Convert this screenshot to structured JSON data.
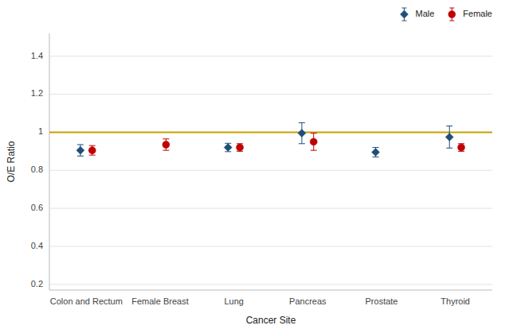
{
  "chart_data": {
    "type": "errorbar",
    "categories": [
      "Colon and Rectum",
      "Female Breast",
      "Lung",
      "Pancreas",
      "Prostate",
      "Thyroid"
    ],
    "series": [
      {
        "name": "Male",
        "color": "#1f4e79",
        "marker": "diamond",
        "values": [
          0.905,
          null,
          0.92,
          0.995,
          0.895,
          0.975
        ],
        "error_lower": [
          0.03,
          null,
          0.022,
          0.055,
          0.025,
          0.058
        ],
        "error_upper": [
          0.03,
          null,
          0.022,
          0.055,
          0.025,
          0.058
        ]
      },
      {
        "name": "Female",
        "color": "#c00000",
        "marker": "circle",
        "values": [
          0.905,
          0.935,
          0.92,
          0.95,
          null,
          0.92
        ],
        "error_lower": [
          0.025,
          0.03,
          0.02,
          0.045,
          null,
          0.02
        ],
        "error_upper": [
          0.025,
          0.03,
          0.02,
          0.045,
          null,
          0.02
        ]
      }
    ],
    "reference_line": {
      "value": 1.0,
      "color": "#c8a000"
    },
    "xlabel": "Cancer Site",
    "ylabel": "O/E Ratio",
    "ylim": [
      0.17,
      1.52
    ],
    "yticks": [
      0.2,
      0.4,
      0.6,
      0.8,
      1,
      1.2,
      1.4
    ],
    "grid": true,
    "legend": "upper right"
  }
}
